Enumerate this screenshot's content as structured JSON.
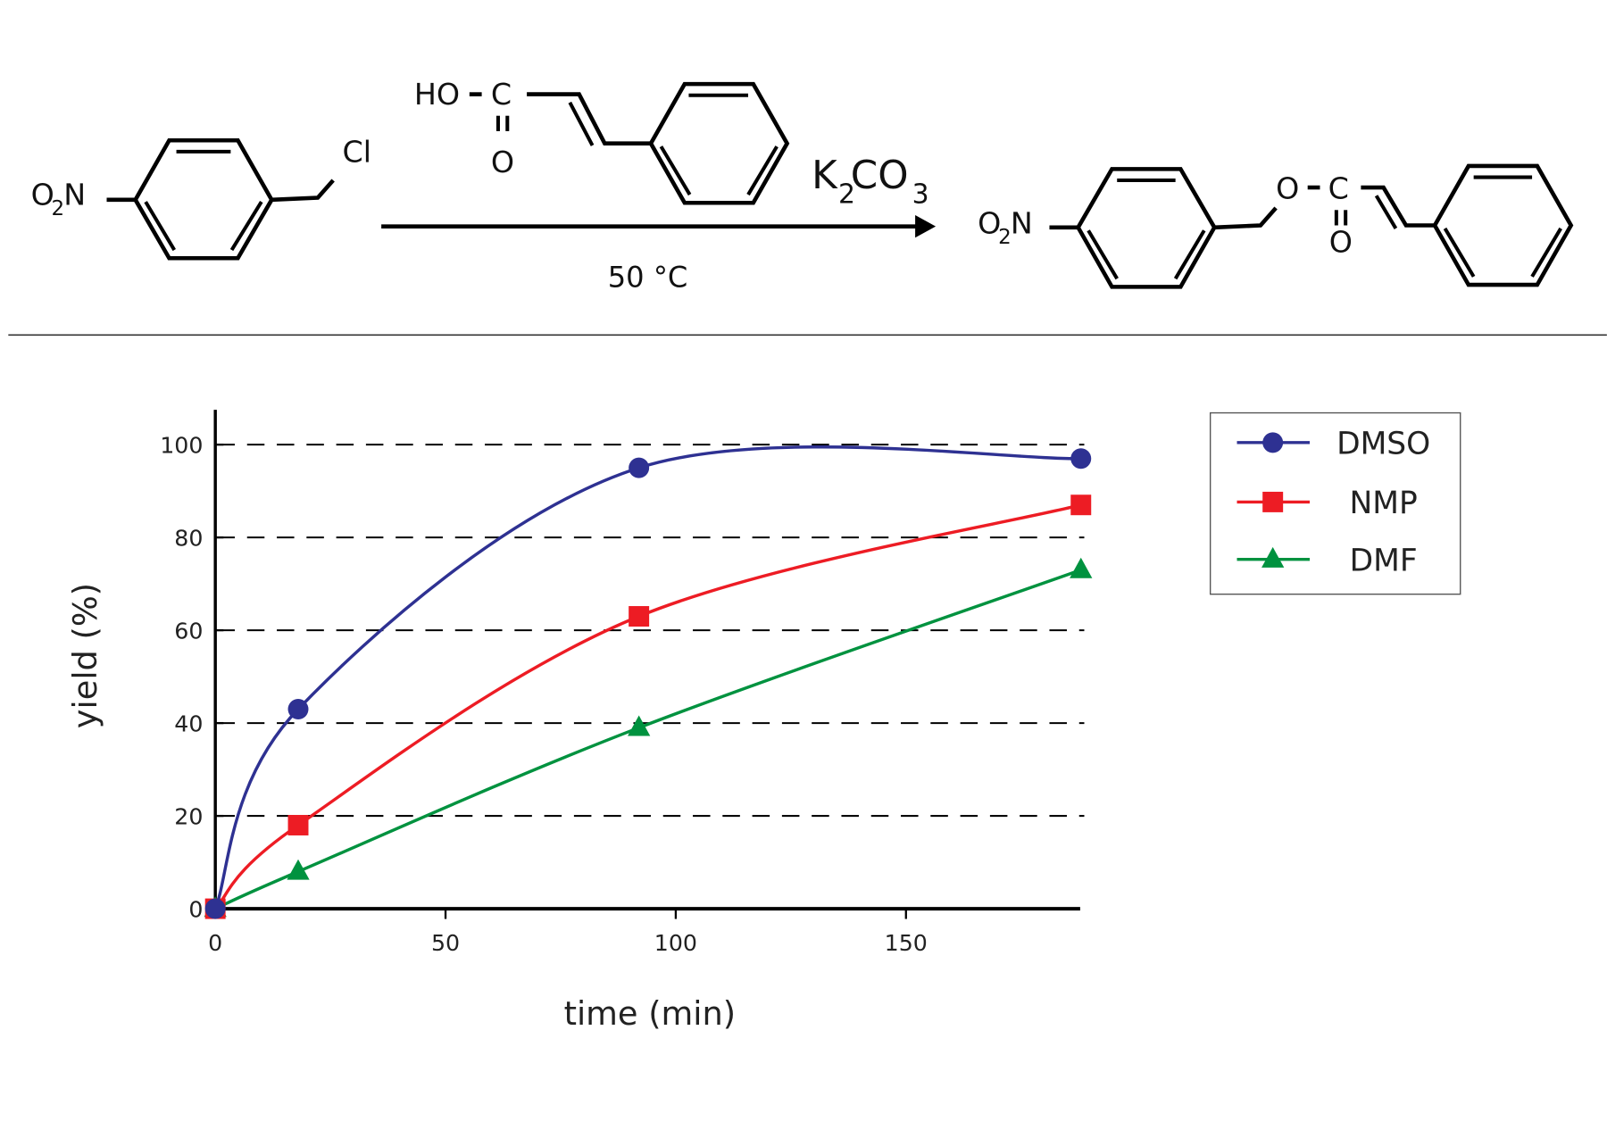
{
  "scheme": {
    "reactant_nitro": "O",
    "reactant_nitro_sub": "2",
    "reactant_nitro_n": "N",
    "reactant_cl": "Cl",
    "reagent_ho": "HO",
    "reagent_c": "C",
    "reagent_o": "O",
    "base_k": "K",
    "base_k_sub": "2",
    "base_co": "CO",
    "base_co_sub": "3",
    "temperature": "50 °C",
    "product_nitro": "O",
    "product_nitro_sub": "2",
    "product_nitro_n": "N",
    "product_o": "O",
    "product_c": "C",
    "product_carbonyl_o": "O"
  },
  "chart_data": {
    "type": "line",
    "title": "",
    "xlabel": "time (min)",
    "ylabel": "yield (%)",
    "xlim": [
      0,
      188
    ],
    "ylim": [
      0,
      108
    ],
    "xticks": [
      0,
      50,
      100,
      150
    ],
    "yticks": [
      0,
      20,
      40,
      60,
      80,
      100
    ],
    "grid": "horizontal dashed at 20,40,60,80,100",
    "legend_placement": "right",
    "series": [
      {
        "name": "DMSO",
        "color": "#2e3192",
        "marker": "circle",
        "x": [
          0,
          18,
          92,
          188
        ],
        "y": [
          0,
          43,
          95,
          97
        ]
      },
      {
        "name": "NMP",
        "color": "#ed1c24",
        "marker": "square",
        "x": [
          0,
          18,
          92,
          188
        ],
        "y": [
          0,
          18,
          63,
          87
        ]
      },
      {
        "name": "DMF",
        "color": "#00923f",
        "marker": "triangle",
        "x": [
          0,
          18,
          92,
          188
        ],
        "y": [
          0,
          8,
          39,
          73
        ]
      }
    ]
  }
}
